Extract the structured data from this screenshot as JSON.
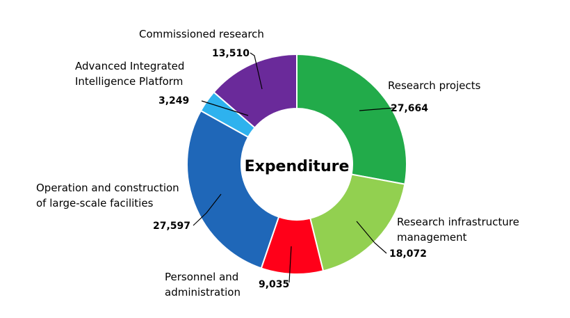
{
  "chart_data": {
    "type": "pie",
    "variant": "donut",
    "center_label": "Expenditure",
    "slices": [
      {
        "label_lines": [
          "Research projects"
        ],
        "value": 27664,
        "value_label": "27,664",
        "color": "#22ab4a"
      },
      {
        "label_lines": [
          "Research infrastructure",
          "management"
        ],
        "value": 18072,
        "value_label": "18,072",
        "color": "#92d050"
      },
      {
        "label_lines": [
          "Personnel and",
          "administration"
        ],
        "value": 9035,
        "value_label": "9,035",
        "color": "#ff0019"
      },
      {
        "label_lines": [
          "Operation and construction",
          "of large-scale facilities"
        ],
        "value": 27597,
        "value_label": "27,597",
        "color": "#1f67b8"
      },
      {
        "label_lines": [
          "Advanced Integrated",
          "Intelligence Platform"
        ],
        "value": 3249,
        "value_label": "3,249",
        "color": "#2eb2ee"
      },
      {
        "label_lines": [
          "Commissioned research"
        ],
        "value": 13510,
        "value_label": "13,510",
        "color": "#6a2a9a"
      }
    ]
  }
}
